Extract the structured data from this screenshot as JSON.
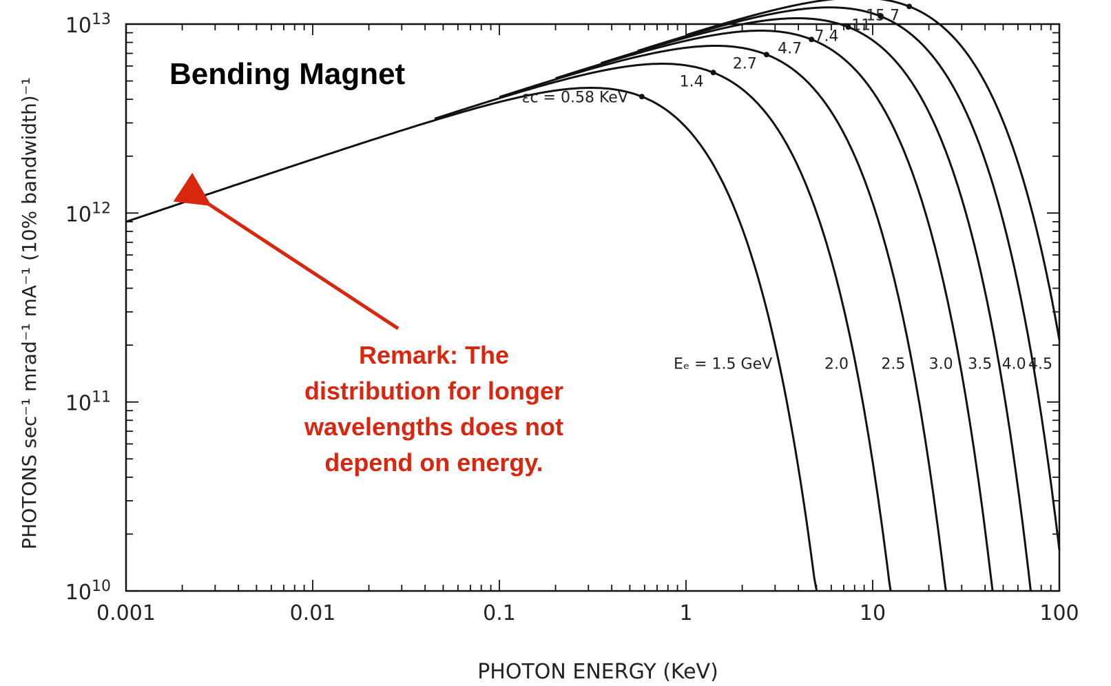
{
  "chart_data": {
    "type": "line",
    "title": "Bending Magnet",
    "xlabel": "PHOTON ENERGY (KeV)",
    "ylabel": "PHOTONS sec⁻¹ mrad⁻¹ mA⁻¹ (10% bandwidth)⁻¹",
    "x_scale": "log",
    "y_scale": "log",
    "xlim": [
      0.001,
      100
    ],
    "ylim": [
      10000000000.0,
      10000000000000.0
    ],
    "x_ticks": [
      {
        "value": 0.001,
        "label": "0.001"
      },
      {
        "value": 0.01,
        "label": "0.01"
      },
      {
        "value": 0.1,
        "label": "0.1"
      },
      {
        "value": 1,
        "label": "1"
      },
      {
        "value": 10,
        "label": "10"
      },
      {
        "value": 100,
        "label": "100"
      }
    ],
    "y_ticks": [
      {
        "value": 10000000000.0,
        "base": "10",
        "exp": "10"
      },
      {
        "value": 100000000000.0,
        "base": "10",
        "exp": "11"
      },
      {
        "value": 1000000000000.0,
        "base": "10",
        "exp": "12"
      },
      {
        "value": 10000000000000.0,
        "base": "10",
        "exp": "13"
      }
    ],
    "series": [
      {
        "name": "1.5 GeV",
        "label": "Eₑ = 1.5 GeV",
        "ec": 0.58,
        "ec_label": "εc = 0.58 KeV",
        "xstart": 0.001
      },
      {
        "name": "2.0",
        "label": "2.0",
        "ec": 1.4,
        "ec_label": "1.4",
        "xstart": 0.045
      },
      {
        "name": "2.5",
        "label": "2.5",
        "ec": 2.7,
        "ec_label": "2.7",
        "xstart": 0.1
      },
      {
        "name": "3.0",
        "label": "3.0",
        "ec": 4.7,
        "ec_label": "4.7",
        "xstart": 0.2
      },
      {
        "name": "3.5",
        "label": "3.5",
        "ec": 7.4,
        "ec_label": "7.4",
        "xstart": 0.35
      },
      {
        "name": "4.0",
        "label": "4.0",
        "ec": 11,
        "ec_label": "11",
        "xstart": 0.55
      },
      {
        "name": "4.5",
        "label": "4.5",
        "ec": 15.7,
        "ec_label": "15.7",
        "xstart": 1.0
      }
    ],
    "annotation": {
      "lines": [
        "Remark: The",
        "distribution for longer",
        "wavelengths does not",
        "depend on energy."
      ],
      "arrow_target": {
        "x": 0.0025,
        "y": 1200000000000.0
      }
    },
    "grid": false,
    "legend": "none",
    "colors": {
      "curve": "#111111",
      "remark": "#d9260f",
      "arrow": "#d9260f"
    }
  }
}
